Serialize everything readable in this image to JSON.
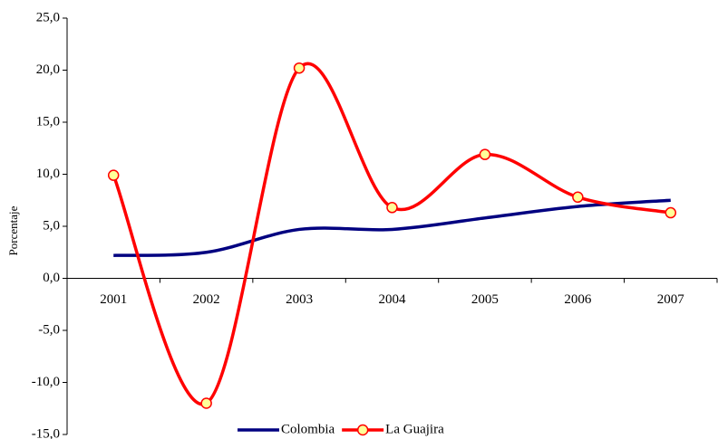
{
  "chart_data": {
    "type": "line",
    "y_axis_label": "Porcentaje",
    "categories": [
      "2001",
      "2002",
      "2003",
      "2004",
      "2005",
      "2006",
      "2007"
    ],
    "series": [
      {
        "name": "Colombia",
        "color": "#000080",
        "values": [
          2.2,
          2.5,
          4.7,
          4.7,
          5.8,
          6.9,
          7.5
        ]
      },
      {
        "name": "La Guajira",
        "color": "#ff0000",
        "marker_color": "#ffff99",
        "values": [
          9.9,
          -12.0,
          20.2,
          6.8,
          11.9,
          7.8,
          6.3
        ]
      }
    ],
    "ylim": [
      -15,
      25
    ],
    "yticks": [
      {
        "value": -15,
        "label": "-15,0"
      },
      {
        "value": -10,
        "label": "-10,0"
      },
      {
        "value": -5,
        "label": "-5,0"
      },
      {
        "value": 0,
        "label": "0,0"
      },
      {
        "value": 5,
        "label": "5,0"
      },
      {
        "value": 10,
        "label": "10,0"
      },
      {
        "value": 15,
        "label": "15,0"
      },
      {
        "value": 20,
        "label": "20,0"
      },
      {
        "value": 25,
        "label": "25,0"
      }
    ],
    "smooth": true,
    "legend": "bottom"
  }
}
